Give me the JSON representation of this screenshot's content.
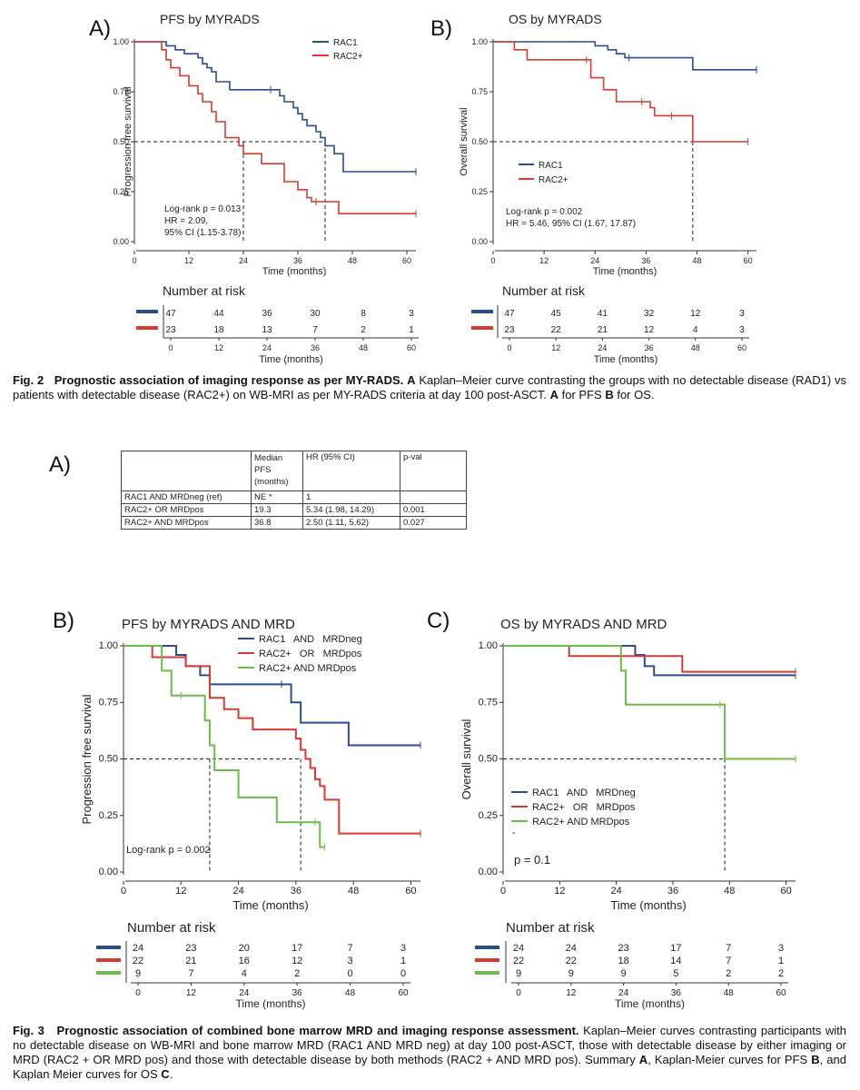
{
  "fig2": {
    "caption": {
      "label": "Fig. 2",
      "title": "Prognostic association of imaging response as per MY-RADS.",
      "part1": "A",
      "text1": " Kaplan–Meier curve contrasting the groups with no detectable disease (RAD1) vs patients with detectable disease (RAC2+) on WB-MRI as per MY-RADS criteria at day 100 post-ASCT. ",
      "part2": "A",
      "text2": " for PFS ",
      "part3": "B",
      "text3": " for OS."
    },
    "panelA": {
      "letter": "A)",
      "title": "PFS by MYRADS",
      "ylabel": "Progression free survival",
      "xlabel": "Time (months)",
      "legend": [
        "RAC1",
        "RAC2+"
      ],
      "stats": [
        "Log-rank p = 0.013",
        "HR = 2.09,",
        "95% CI (1.15-3.78)"
      ],
      "risk_title": "Number at risk",
      "risk_rows": [
        [
          "47",
          "44",
          "36",
          "30",
          "8",
          "3"
        ],
        [
          "23",
          "18",
          "13",
          "7",
          "2",
          "1"
        ]
      ]
    },
    "panelB": {
      "letter": "B)",
      "title": "OS by MYRADS",
      "ylabel": "Overall survival",
      "xlabel": "Time (months)",
      "legend": [
        "RAC1",
        "RAC2+"
      ],
      "stats": [
        "Log-rank p = 0.002",
        "HR = 5.46, 95% CI (1.67, 17.87)"
      ],
      "risk_title": "Number at risk",
      "risk_rows": [
        [
          "47",
          "45",
          "41",
          "32",
          "12",
          "3"
        ],
        [
          "23",
          "22",
          "21",
          "12",
          "4",
          "3"
        ]
      ]
    }
  },
  "fig3": {
    "caption": {
      "label": "Fig. 3",
      "title": "Prognostic association of combined bone marrow MRD and imaging response assessment.",
      "text1": " Kaplan–Meier curves contrasting participants with no detectable disease on WB-MRI and bone marrow MRD (RAC1 AND MRD neg) at day 100 post-ASCT, those with detectable disease by either imaging or MRD (RAC2 + OR MRD pos) and those with detectable disease by both methods (RAC2 + AND MRD pos). Summary ",
      "partA": "A",
      "text2": ", Kaplan-Meier curves for PFS ",
      "partB": "B",
      "text3": ", and Kaplan Meier curves for OS ",
      "partC": "C",
      "text4": "."
    },
    "tableA": {
      "letter": "A)",
      "headers": [
        "",
        "Median PFS (months)",
        "HR (95% CI)",
        "p-val"
      ],
      "rows": [
        [
          "RAC1 AND MRDneg (ref)",
          "NE *",
          "1",
          ""
        ],
        [
          "RAC2+ OR MRDpos",
          "19.3",
          "5.34 (1.98, 14.29)",
          "0.001"
        ],
        [
          "RAC2+ AND MRDpos",
          "36.8",
          "2.50 (1.11, 5.62)",
          "0.027"
        ]
      ]
    },
    "panelB": {
      "letter": "B)",
      "title": "PFS by MYRADS AND MRD",
      "ylabel": "Progression free survival",
      "xlabel": "Time (months)",
      "legend": [
        "RAC1   AND   MRDneg",
        "RAC2+   OR   MRDpos",
        "RAC2+ AND MRDpos"
      ],
      "stats": [
        "Log-rank p = 0.002"
      ],
      "risk_title": "Number at risk",
      "risk_rows": [
        [
          "24",
          "23",
          "20",
          "17",
          "7",
          "3"
        ],
        [
          "22",
          "21",
          "16",
          "12",
          "3",
          "1"
        ],
        [
          "9",
          "7",
          "4",
          "2",
          "0",
          "0"
        ]
      ]
    },
    "panelC": {
      "letter": "C)",
      "title": "OS by MYRADS AND MRD",
      "ylabel": "Overall survival",
      "xlabel": "Time (months)",
      "legend": [
        "RAC1   AND   MRDneg",
        "RAC2+   OR   MRDpos",
        "RAC2+ AND MRDpos"
      ],
      "stats": [
        "p = 0.1"
      ],
      "dash": "-",
      "risk_title": "Number at risk",
      "risk_rows": [
        [
          "24",
          "24",
          "23",
          "17",
          "7",
          "3"
        ],
        [
          "22",
          "22",
          "18",
          "14",
          "7",
          "1"
        ],
        [
          "9",
          "9",
          "9",
          "5",
          "2",
          "2"
        ]
      ]
    }
  },
  "colors": {
    "blue": "#2a4d8f",
    "red": "#d63a31",
    "green": "#6dbb4b"
  },
  "chart_data": [
    {
      "type": "line",
      "title": "PFS by MYRADS",
      "xlabel": "Time (months)",
      "ylabel": "Progression free survival",
      "xlim": [
        0,
        62
      ],
      "ylim": [
        0,
        1
      ],
      "xticks": [
        0,
        12,
        24,
        36,
        48,
        60
      ],
      "yticks": [
        0,
        0.25,
        0.5,
        0.75,
        1
      ],
      "medians": [
        24,
        42
      ],
      "series": [
        {
          "name": "RAC1",
          "color": "blue",
          "x": [
            0,
            7,
            9,
            11,
            14,
            15,
            16,
            17,
            18,
            21,
            30,
            32,
            33,
            35,
            36,
            37,
            38,
            40,
            41,
            42,
            44,
            46,
            62
          ],
          "y": [
            1,
            0.98,
            0.96,
            0.94,
            0.92,
            0.89,
            0.87,
            0.85,
            0.8,
            0.76,
            0.76,
            0.73,
            0.7,
            0.67,
            0.64,
            0.61,
            0.58,
            0.55,
            0.52,
            0.48,
            0.44,
            0.35,
            0.35
          ]
        },
        {
          "name": "RAC2+",
          "color": "red",
          "x": [
            0,
            6,
            7,
            8,
            10,
            12,
            14,
            15,
            17,
            18,
            20,
            23,
            24,
            28,
            33,
            36,
            38,
            39,
            40,
            45,
            62
          ],
          "y": [
            1,
            0.96,
            0.91,
            0.87,
            0.83,
            0.78,
            0.74,
            0.7,
            0.65,
            0.6,
            0.52,
            0.48,
            0.44,
            0.39,
            0.3,
            0.26,
            0.22,
            0.2,
            0.2,
            0.14,
            0.14
          ]
        }
      ]
    },
    {
      "type": "line",
      "title": "OS by MYRADS",
      "xlabel": "Time (months)",
      "ylabel": "Overall survival",
      "xlim": [
        0,
        62
      ],
      "ylim": [
        0,
        1
      ],
      "xticks": [
        0,
        12,
        24,
        36,
        48,
        60
      ],
      "yticks": [
        0,
        0.25,
        0.5,
        0.75,
        1
      ],
      "medians": [
        47
      ],
      "series": [
        {
          "name": "RAC1",
          "color": "blue",
          "x": [
            0,
            24,
            27,
            29,
            31,
            32,
            47,
            62
          ],
          "y": [
            1,
            0.98,
            0.96,
            0.94,
            0.92,
            0.92,
            0.86,
            0.86
          ]
        },
        {
          "name": "RAC2+",
          "color": "red",
          "x": [
            0,
            5,
            8,
            22,
            23,
            26,
            29,
            35,
            37,
            38,
            42,
            47,
            60
          ],
          "y": [
            1,
            0.96,
            0.91,
            0.91,
            0.82,
            0.76,
            0.7,
            0.7,
            0.67,
            0.63,
            0.63,
            0.5,
            0.5
          ]
        }
      ]
    },
    {
      "type": "line",
      "title": "PFS by MYRADS AND MRD",
      "xlabel": "Time (months)",
      "ylabel": "Progression free survival",
      "xlim": [
        0,
        62
      ],
      "ylim": [
        0,
        1
      ],
      "xticks": [
        0,
        12,
        24,
        36,
        48,
        60
      ],
      "yticks": [
        0,
        0.25,
        0.5,
        0.75,
        1
      ],
      "medians": [
        18,
        37
      ],
      "series": [
        {
          "name": "RAC1 AND MRDneg",
          "color": "blue",
          "x": [
            0,
            11,
            13,
            16,
            18,
            33,
            35,
            37,
            47,
            62
          ],
          "y": [
            1,
            0.96,
            0.91,
            0.87,
            0.83,
            0.83,
            0.75,
            0.66,
            0.56,
            0.56
          ]
        },
        {
          "name": "RAC2+ OR MRDpos",
          "color": "red",
          "x": [
            0,
            6,
            13,
            18,
            21,
            24,
            27,
            36,
            37,
            38,
            39,
            40,
            41,
            42,
            45,
            62
          ],
          "y": [
            1,
            0.95,
            0.91,
            0.77,
            0.72,
            0.68,
            0.63,
            0.59,
            0.54,
            0.5,
            0.46,
            0.41,
            0.38,
            0.32,
            0.17,
            0.17
          ]
        },
        {
          "name": "RAC2+ AND MRDpos",
          "color": "green",
          "x": [
            0,
            8,
            10,
            12,
            17,
            18,
            19,
            24,
            32,
            40,
            41,
            42
          ],
          "y": [
            1,
            0.89,
            0.78,
            0.78,
            0.67,
            0.56,
            0.45,
            0.33,
            0.22,
            0.22,
            0.11,
            0.11
          ]
        }
      ]
    },
    {
      "type": "line",
      "title": "OS by MYRADS AND MRD",
      "xlabel": "Time (months)",
      "ylabel": "Overall survival",
      "xlim": [
        0,
        62
      ],
      "ylim": [
        0,
        1
      ],
      "xticks": [
        0,
        12,
        24,
        36,
        48,
        60
      ],
      "yticks": [
        0,
        0.25,
        0.5,
        0.75,
        1
      ],
      "medians": [
        47
      ],
      "series": [
        {
          "name": "RAC1 AND MRDneg",
          "color": "blue",
          "x": [
            0,
            28,
            30,
            32,
            62
          ],
          "y": [
            1,
            0.96,
            0.91,
            0.87,
            0.87
          ]
        },
        {
          "name": "RAC2+ OR MRDpos",
          "color": "red",
          "x": [
            0,
            14,
            38,
            62
          ],
          "y": [
            1,
            0.955,
            0.885,
            0.885
          ]
        },
        {
          "name": "RAC2+ AND MRDpos",
          "color": "green",
          "x": [
            0,
            25,
            26,
            46,
            47,
            62
          ],
          "y": [
            1,
            0.89,
            0.74,
            0.74,
            0.5,
            0.5
          ]
        }
      ]
    }
  ]
}
